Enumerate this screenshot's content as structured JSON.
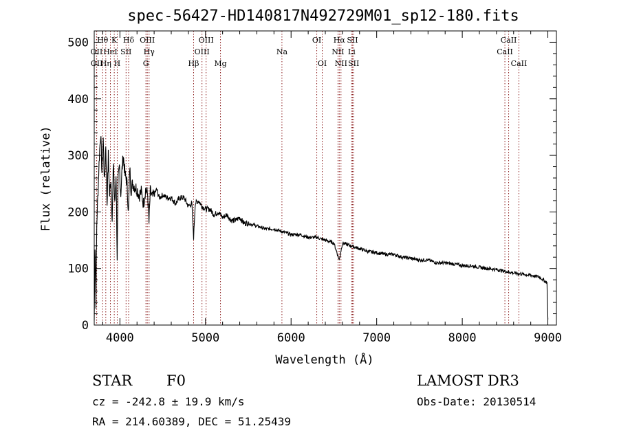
{
  "chart_data": {
    "type": "line",
    "title": "spec-56427-HD140817N492729M01_sp12-180.fits",
    "xlabel": "Wavelength (Å)",
    "ylabel": "Flux (relative)",
    "xlim": [
      3700,
      9100
    ],
    "ylim": [
      0,
      520
    ],
    "xticks": [
      4000,
      5000,
      6000,
      7000,
      8000,
      9000
    ],
    "yticks": [
      0,
      100,
      200,
      300,
      400,
      500
    ],
    "series": [
      {
        "name": "flux",
        "x": [
          3700,
          3710,
          3720,
          3730,
          3745,
          3760,
          3775,
          3790,
          3805,
          3820,
          3835,
          3850,
          3865,
          3880,
          3895,
          3910,
          3925,
          3940,
          3955,
          3968,
          3980,
          3995,
          4010,
          4025,
          4040,
          4060,
          4080,
          4101,
          4115,
          4130,
          4150,
          4175,
          4200,
          4225,
          4250,
          4275,
          4300,
          4325,
          4340,
          4355,
          4380,
          4400,
          4430,
          4460,
          4500,
          4550,
          4600,
          4650,
          4700,
          4750,
          4800,
          4840,
          4861,
          4880,
          4920,
          4960,
          5000,
          5050,
          5100,
          5150,
          5200,
          5250,
          5300,
          5350,
          5400,
          5450,
          5500,
          5600,
          5700,
          5800,
          5900,
          6000,
          6100,
          6200,
          6300,
          6400,
          6500,
          6563,
          6600,
          6700,
          6800,
          6900,
          7000,
          7100,
          7200,
          7300,
          7400,
          7500,
          7600,
          7700,
          7800,
          7900,
          8000,
          8100,
          8200,
          8300,
          8400,
          8500,
          8600,
          8700,
          8800,
          8900,
          8990,
          9000
        ],
        "y": [
          8,
          140,
          40,
          180,
          240,
          300,
          340,
          270,
          330,
          250,
          320,
          215,
          300,
          230,
          260,
          185,
          290,
          210,
          270,
          120,
          255,
          280,
          230,
          275,
          300,
          265,
          255,
          200,
          280,
          240,
          250,
          245,
          240,
          230,
          235,
          215,
          240,
          230,
          180,
          235,
          225,
          230,
          240,
          225,
          230,
          225,
          225,
          215,
          225,
          225,
          210,
          215,
          155,
          215,
          220,
          210,
          205,
          205,
          195,
          200,
          190,
          195,
          185,
          185,
          190,
          180,
          180,
          175,
          170,
          170,
          165,
          160,
          160,
          155,
          155,
          150,
          145,
          115,
          145,
          140,
          135,
          130,
          128,
          125,
          125,
          120,
          118,
          115,
          115,
          110,
          110,
          108,
          105,
          105,
          102,
          100,
          98,
          95,
          92,
          90,
          88,
          85,
          75,
          10
        ]
      }
    ],
    "lines": [
      {
        "label": "OII",
        "wl": 3727,
        "row": 2
      },
      {
        "label": "OII",
        "wl": 3729,
        "row": 3
      },
      {
        "label": "Hθ",
        "wl": 3798,
        "row": 1
      },
      {
        "label": "Hη",
        "wl": 3835,
        "row": 3
      },
      {
        "label": "HeI",
        "wl": 3889,
        "row": 2
      },
      {
        "label": "K",
        "wl": 3934,
        "row": 1
      },
      {
        "label": "SII",
        "wl": 4072,
        "row": 2
      },
      {
        "label": "H",
        "wl": 3969,
        "row": 3
      },
      {
        "label": "Hδ",
        "wl": 4102,
        "row": 1
      },
      {
        "label": "OIII",
        "wl": 4320,
        "row": 1
      },
      {
        "label": "Hγ",
        "wl": 4341,
        "row": 2
      },
      {
        "label": "G",
        "wl": 4304,
        "row": 3
      },
      {
        "label": "Hβ",
        "wl": 4861,
        "row": 3
      },
      {
        "label": "OIII",
        "wl": 4959,
        "row": 2
      },
      {
        "label": "OIII",
        "wl": 5007,
        "row": 1
      },
      {
        "label": "Mg",
        "wl": 5175,
        "row": 3
      },
      {
        "label": "Na",
        "wl": 5893,
        "row": 2
      },
      {
        "label": "OI",
        "wl": 6300,
        "row": 1
      },
      {
        "label": "OI",
        "wl": 6364,
        "row": 3
      },
      {
        "label": "NII",
        "wl": 6548,
        "row": 2
      },
      {
        "label": "Hα",
        "wl": 6563,
        "row": 1
      },
      {
        "label": "NII",
        "wl": 6583,
        "row": 3
      },
      {
        "label": "SII",
        "wl": 6717,
        "row": 1
      },
      {
        "label": "Li",
        "wl": 6708,
        "row": 2
      },
      {
        "label": "SII",
        "wl": 6731,
        "row": 3
      },
      {
        "label": "CaII",
        "wl": 8498,
        "row": 2
      },
      {
        "label": "CaII",
        "wl": 8542,
        "row": 1
      },
      {
        "label": "CaII",
        "wl": 8662,
        "row": 3
      }
    ],
    "line_color": "#8b1a1a",
    "data_color": "#000000"
  },
  "info": {
    "classification": "STAR",
    "subclass": "F0",
    "survey": "LAMOST DR3",
    "cz": "cz = -242.8 ± 19.9 km/s",
    "obs_date": "Obs-Date: 20130514",
    "coords": "RA = 214.60389, DEC =  51.25439"
  }
}
